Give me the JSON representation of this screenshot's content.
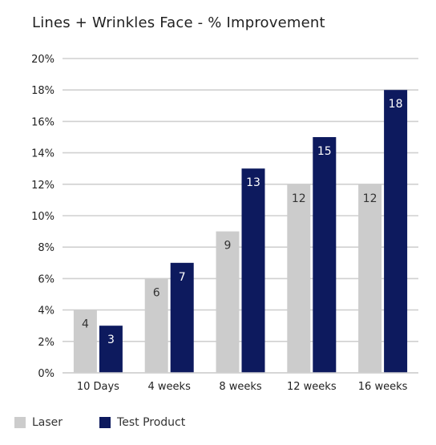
{
  "chart_data": {
    "type": "bar",
    "title": "Lines + Wrinkles Face - % Improvement",
    "categories": [
      "10 Days",
      "4 weeks",
      "8 weeks",
      "12 weeks",
      "16 weeks"
    ],
    "series": [
      {
        "name": "Laser",
        "values": [
          4,
          6,
          9,
          12,
          12
        ],
        "color": "#cccccc",
        "label_color": "#333333"
      },
      {
        "name": "Test Product",
        "values": [
          3,
          7,
          13,
          15,
          18
        ],
        "color": "#0d1a5e",
        "label_color": "#ffffff"
      }
    ],
    "ylim": [
      0,
      20
    ],
    "yticks": [
      0,
      2,
      4,
      6,
      8,
      10,
      12,
      14,
      16,
      18,
      20
    ],
    "ytick_labels": [
      "0%",
      "2%",
      "4%",
      "6%",
      "8%",
      "10%",
      "12%",
      "14%",
      "16%",
      "18%",
      "20%"
    ],
    "grid": true,
    "legend_position": "bottom-left"
  }
}
